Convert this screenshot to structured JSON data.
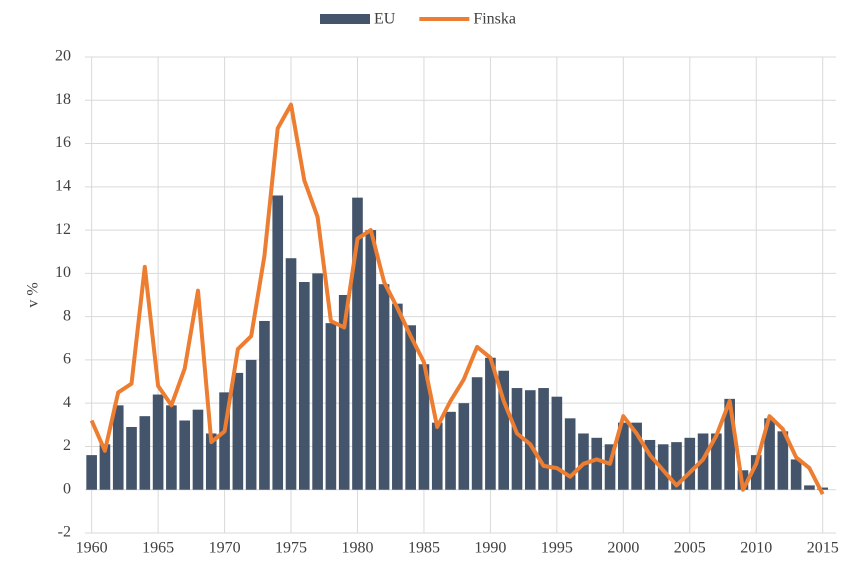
{
  "chart_data": {
    "type": "combo",
    "y_label": "v %",
    "x": [
      1960,
      1961,
      1962,
      1963,
      1964,
      1965,
      1966,
      1967,
      1968,
      1969,
      1970,
      1971,
      1972,
      1973,
      1974,
      1975,
      1976,
      1977,
      1978,
      1979,
      1980,
      1981,
      1982,
      1983,
      1984,
      1985,
      1986,
      1987,
      1988,
      1989,
      1990,
      1991,
      1992,
      1993,
      1994,
      1995,
      1996,
      1997,
      1998,
      1999,
      2000,
      2001,
      2002,
      2003,
      2004,
      2005,
      2006,
      2007,
      2008,
      2009,
      2010,
      2011,
      2012,
      2013,
      2014,
      2015
    ],
    "series": [
      {
        "name": "EU",
        "type": "bar",
        "color": "#44546a",
        "values": [
          1.6,
          2.1,
          3.9,
          2.9,
          3.4,
          4.4,
          3.9,
          3.2,
          3.7,
          2.6,
          4.5,
          5.4,
          6.0,
          7.8,
          13.6,
          10.7,
          9.6,
          10.0,
          7.7,
          9.0,
          13.5,
          12.0,
          9.5,
          8.6,
          7.6,
          5.8,
          3.1,
          3.6,
          4.0,
          5.2,
          6.1,
          5.5,
          4.7,
          4.6,
          4.7,
          4.3,
          3.3,
          2.6,
          2.4,
          2.1,
          3.1,
          3.1,
          2.3,
          2.1,
          2.2,
          2.4,
          2.6,
          2.6,
          4.2,
          0.9,
          1.6,
          3.3,
          2.7,
          1.4,
          0.2,
          0.1
        ]
      },
      {
        "name": "Finska",
        "type": "line",
        "color": "#ed7d31",
        "values": [
          3.2,
          1.8,
          4.5,
          4.9,
          10.3,
          4.8,
          3.9,
          5.6,
          9.2,
          2.2,
          2.7,
          6.5,
          7.1,
          10.8,
          16.7,
          17.8,
          14.3,
          12.6,
          7.8,
          7.5,
          11.6,
          12.0,
          9.6,
          8.4,
          7.1,
          5.9,
          2.9,
          4.1,
          5.1,
          6.6,
          6.1,
          4.1,
          2.6,
          2.1,
          1.1,
          1.0,
          0.6,
          1.2,
          1.4,
          1.2,
          3.4,
          2.6,
          1.6,
          0.9,
          0.2,
          0.8,
          1.4,
          2.5,
          4.1,
          0.0,
          1.2,
          3.4,
          2.8,
          1.5,
          1.0,
          -0.2
        ]
      }
    ],
    "xlim": [
      1959.5,
      2016
    ],
    "xticks": [
      1960,
      1965,
      1970,
      1975,
      1980,
      1985,
      1990,
      1995,
      2000,
      2005,
      2010,
      2015
    ],
    "ylim": [
      -2,
      20
    ],
    "yticks": [
      -2,
      0,
      2,
      4,
      6,
      8,
      10,
      12,
      14,
      16,
      18,
      20
    ],
    "grid": true,
    "legend": "top"
  }
}
